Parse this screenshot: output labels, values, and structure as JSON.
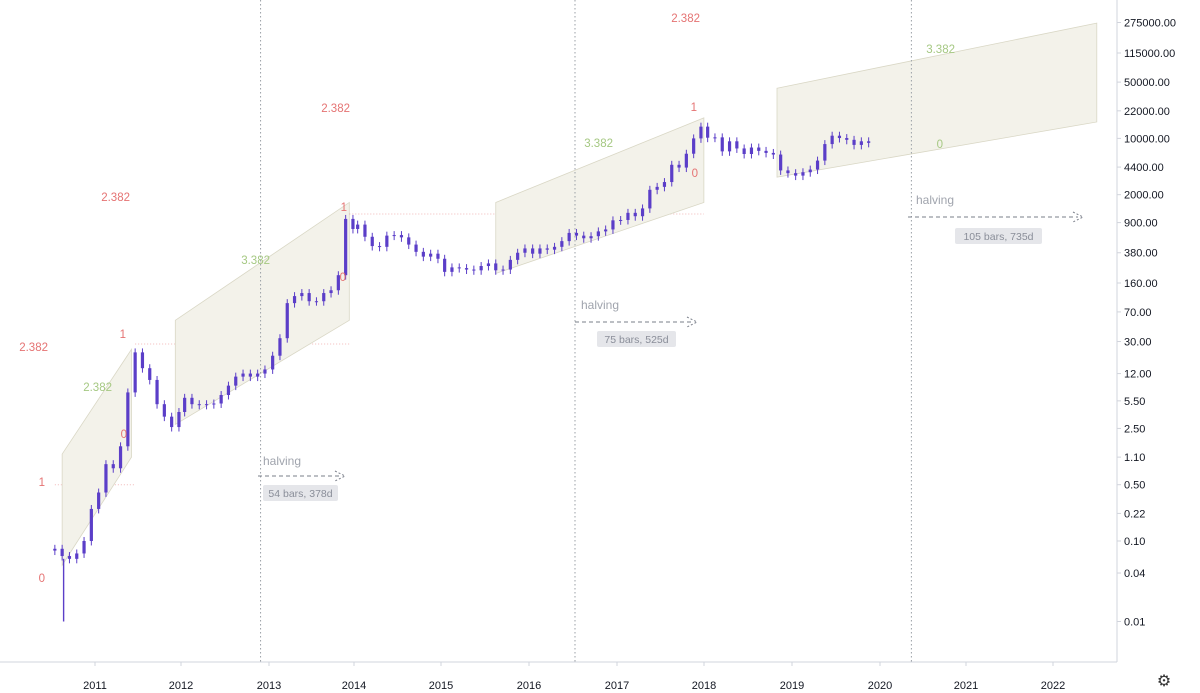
{
  "chart_data": {
    "type": "line",
    "title": "",
    "xlabel": "",
    "ylabel": "",
    "scale": "log",
    "grid": false,
    "y_ticks": [
      "275000.00",
      "115000.00",
      "50000.00",
      "22000.00",
      "10000.00",
      "4400.00",
      "2000.00",
      "900.00",
      "380.00",
      "160.00",
      "70.00",
      "30.00",
      "12.00",
      "5.50",
      "2.50",
      "1.10",
      "0.50",
      "0.22",
      "0.10",
      "0.04",
      "0.01"
    ],
    "x_ticks": [
      "2011",
      "2012",
      "2013",
      "2014",
      "2015",
      "2016",
      "2017",
      "2018",
      "2019",
      "2020",
      "2021",
      "2022"
    ],
    "series": [
      {
        "values_note": "",
        "points": [
          [
            "2010-07",
            0.08
          ],
          [
            "2010-08",
            0.065
          ],
          [
            "2010-09",
            0.06
          ],
          [
            "2010-10",
            0.07
          ],
          [
            "2010-11",
            0.1
          ],
          [
            "2010-12",
            0.25
          ],
          [
            "2011-01",
            0.4
          ],
          [
            "2011-02",
            0.9
          ],
          [
            "2011-03",
            0.8
          ],
          [
            "2011-04",
            1.5
          ],
          [
            "2011-05",
            7
          ],
          [
            "2011-06",
            22
          ],
          [
            "2011-07",
            14
          ],
          [
            "2011-08",
            10
          ],
          [
            "2011-09",
            5
          ],
          [
            "2011-10",
            3.5
          ],
          [
            "2011-11",
            2.6
          ],
          [
            "2011-12",
            4
          ],
          [
            "2012-01",
            6
          ],
          [
            "2012-02",
            5
          ],
          [
            "2012-03",
            4.9
          ],
          [
            "2012-04",
            5
          ],
          [
            "2012-05",
            5.1
          ],
          [
            "2012-06",
            6.5
          ],
          [
            "2012-07",
            8.5
          ],
          [
            "2012-08",
            11
          ],
          [
            "2012-09",
            12
          ],
          [
            "2012-10",
            11
          ],
          [
            "2012-11",
            12
          ],
          [
            "2012-12",
            13.5
          ],
          [
            "2013-01",
            20
          ],
          [
            "2013-02",
            33
          ],
          [
            "2013-03",
            90
          ],
          [
            "2013-04",
            110
          ],
          [
            "2013-05",
            120
          ],
          [
            "2013-06",
            95
          ],
          [
            "2013-07",
            95
          ],
          [
            "2013-08",
            120
          ],
          [
            "2013-09",
            130
          ],
          [
            "2013-10",
            200
          ],
          [
            "2013-11",
            1000
          ],
          [
            "2013-12",
            750
          ],
          [
            "2014-01",
            850
          ],
          [
            "2014-02",
            600
          ],
          [
            "2014-03",
            460
          ],
          [
            "2014-04",
            450
          ],
          [
            "2014-05",
            620
          ],
          [
            "2014-06",
            630
          ],
          [
            "2014-07",
            590
          ],
          [
            "2014-08",
            480
          ],
          [
            "2014-09",
            390
          ],
          [
            "2014-10",
            340
          ],
          [
            "2014-11",
            370
          ],
          [
            "2014-12",
            320
          ],
          [
            "2015-01",
            220
          ],
          [
            "2015-02",
            250
          ],
          [
            "2015-03",
            245
          ],
          [
            "2015-04",
            235
          ],
          [
            "2015-05",
            230
          ],
          [
            "2015-06",
            260
          ],
          [
            "2015-07",
            280
          ],
          [
            "2015-08",
            230
          ],
          [
            "2015-09",
            235
          ],
          [
            "2015-10",
            310
          ],
          [
            "2015-11",
            380
          ],
          [
            "2015-12",
            430
          ],
          [
            "2016-01",
            370
          ],
          [
            "2016-02",
            430
          ],
          [
            "2016-03",
            415
          ],
          [
            "2016-04",
            450
          ],
          [
            "2016-05",
            530
          ],
          [
            "2016-06",
            670
          ],
          [
            "2016-07",
            620
          ],
          [
            "2016-08",
            575
          ],
          [
            "2016-09",
            610
          ],
          [
            "2016-10",
            700
          ],
          [
            "2016-11",
            740
          ],
          [
            "2016-12",
            960
          ],
          [
            "2017-01",
            970
          ],
          [
            "2017-02",
            1190
          ],
          [
            "2017-03",
            1080
          ],
          [
            "2017-04",
            1350
          ],
          [
            "2017-05",
            2300
          ],
          [
            "2017-06",
            2500
          ],
          [
            "2017-07",
            2870
          ],
          [
            "2017-08",
            4700
          ],
          [
            "2017-09",
            4340
          ],
          [
            "2017-10",
            6450
          ],
          [
            "2017-11",
            10000
          ],
          [
            "2017-12",
            14000
          ],
          [
            "2018-01",
            10200
          ],
          [
            "2018-02",
            10300
          ],
          [
            "2018-03",
            6900
          ],
          [
            "2018-04",
            9200
          ],
          [
            "2018-05",
            7500
          ],
          [
            "2018-06",
            6400
          ],
          [
            "2018-07",
            7700
          ],
          [
            "2018-08",
            7000
          ],
          [
            "2018-09",
            6600
          ],
          [
            "2018-10",
            6300
          ],
          [
            "2018-11",
            4000
          ],
          [
            "2018-12",
            3700
          ],
          [
            "2019-01",
            3450
          ],
          [
            "2019-02",
            3800
          ],
          [
            "2019-03",
            4100
          ],
          [
            "2019-04",
            5300
          ],
          [
            "2019-05",
            8500
          ],
          [
            "2019-06",
            10800
          ],
          [
            "2019-07",
            10100
          ],
          [
            "2019-08",
            9600
          ],
          [
            "2019-09",
            8300
          ],
          [
            "2019-10",
            9200
          ],
          [
            "2019-11",
            8800
          ]
        ]
      }
    ],
    "annotations": {
      "fib_labels_red": [
        {
          "text": "2.382"
        },
        {
          "text": "1"
        },
        {
          "text": "0"
        },
        {
          "text": "2.382"
        },
        {
          "text": "1"
        },
        {
          "text": "0"
        },
        {
          "text": "2.382"
        },
        {
          "text": "1"
        },
        {
          "text": "0"
        },
        {
          "text": "2.382"
        },
        {
          "text": "1"
        },
        {
          "text": "0"
        }
      ],
      "fib_labels_green": [
        {
          "text": "2.382"
        },
        {
          "text": "3.382"
        },
        {
          "text": "3.382"
        },
        {
          "text": "3.382"
        },
        {
          "text": "0"
        }
      ],
      "halvings": [
        {
          "label": "halving",
          "measure": "54 bars, 378d"
        },
        {
          "label": "halving",
          "measure": "75 bars, 525d"
        },
        {
          "label": "halving",
          "measure": "105 bars, 735d"
        }
      ]
    },
    "colors": {
      "candle": "#5b3ec8",
      "fib_red": "#e57373",
      "fib_green": "#a5c882",
      "box_red": "#fdecef",
      "channel": "#f3f2ea"
    }
  }
}
